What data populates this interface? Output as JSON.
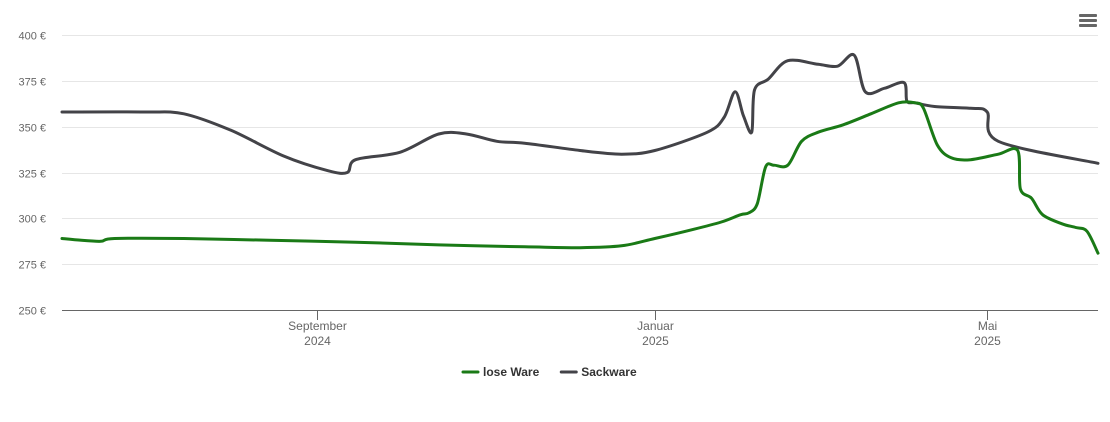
{
  "menu_icon": "hamburger-menu-icon",
  "chart_data": {
    "type": "line",
    "title": "",
    "xlabel": "",
    "ylabel": "",
    "ylim": [
      250,
      400
    ],
    "yticks": [
      250,
      275,
      300,
      325,
      350,
      375,
      400
    ],
    "ytick_labels": [
      "250 €",
      "275 €",
      "300 €",
      "325 €",
      "350 €",
      "375 €",
      "400 €"
    ],
    "xlim": [
      "2024-06-01",
      "2025-06-10"
    ],
    "xticks": [
      {
        "date": "2024-09-01",
        "line1": "September",
        "line2": "2024"
      },
      {
        "date": "2025-01-01",
        "line1": "Januar",
        "line2": "2025"
      },
      {
        "date": "2025-05-01",
        "line1": "Mai",
        "line2": "2025"
      }
    ],
    "grid": true,
    "legend_position": "bottom",
    "series": [
      {
        "name": "lose Ware",
        "color": "#1a7a16",
        "points": [
          [
            "2024-06-01",
            289
          ],
          [
            "2024-06-08",
            288
          ],
          [
            "2024-06-15",
            287.5
          ],
          [
            "2024-06-20",
            289
          ],
          [
            "2024-07-15",
            289
          ],
          [
            "2024-08-15",
            288
          ],
          [
            "2024-09-15",
            287
          ],
          [
            "2024-10-15",
            285.5
          ],
          [
            "2024-11-15",
            284.5
          ],
          [
            "2024-12-05",
            284
          ],
          [
            "2024-12-20",
            285
          ],
          [
            "2025-01-01",
            289
          ],
          [
            "2025-01-15",
            294
          ],
          [
            "2025-01-25",
            298
          ],
          [
            "2025-02-01",
            302
          ],
          [
            "2025-02-04",
            303
          ],
          [
            "2025-02-07",
            308
          ],
          [
            "2025-02-10",
            328
          ],
          [
            "2025-02-13",
            329
          ],
          [
            "2025-02-18",
            329
          ],
          [
            "2025-02-23",
            342
          ],
          [
            "2025-03-01",
            347
          ],
          [
            "2025-03-10",
            351
          ],
          [
            "2025-03-20",
            357
          ],
          [
            "2025-03-30",
            363
          ],
          [
            "2025-04-05",
            363
          ],
          [
            "2025-04-08",
            360
          ],
          [
            "2025-04-13",
            340
          ],
          [
            "2025-04-18",
            333
          ],
          [
            "2025-04-25",
            332
          ],
          [
            "2025-05-05",
            335
          ],
          [
            "2025-05-12",
            337
          ],
          [
            "2025-05-13",
            316
          ],
          [
            "2025-05-17",
            311
          ],
          [
            "2025-05-21",
            302
          ],
          [
            "2025-05-28",
            297
          ],
          [
            "2025-06-02",
            295
          ],
          [
            "2025-06-06",
            293
          ],
          [
            "2025-06-10",
            281
          ]
        ]
      },
      {
        "name": "Sackware",
        "color": "#434348",
        "points": [
          [
            "2024-06-01",
            358
          ],
          [
            "2024-07-01",
            358
          ],
          [
            "2024-07-15",
            357
          ],
          [
            "2024-08-01",
            348
          ],
          [
            "2024-08-20",
            334
          ],
          [
            "2024-09-05",
            326
          ],
          [
            "2024-09-12",
            325
          ],
          [
            "2024-09-15",
            332
          ],
          [
            "2024-10-01",
            336
          ],
          [
            "2024-10-15",
            346
          ],
          [
            "2024-10-25",
            346
          ],
          [
            "2024-11-05",
            342
          ],
          [
            "2024-11-15",
            341
          ],
          [
            "2024-12-05",
            337
          ],
          [
            "2024-12-20",
            335
          ],
          [
            "2025-01-01",
            337
          ],
          [
            "2025-01-20",
            347
          ],
          [
            "2025-01-26",
            355
          ],
          [
            "2025-01-30",
            369
          ],
          [
            "2025-02-02",
            356
          ],
          [
            "2025-02-05",
            347
          ],
          [
            "2025-02-06",
            370
          ],
          [
            "2025-02-11",
            376
          ],
          [
            "2025-02-18",
            386
          ],
          [
            "2025-03-01",
            384
          ],
          [
            "2025-03-08",
            383
          ],
          [
            "2025-03-14",
            389
          ],
          [
            "2025-03-18",
            369
          ],
          [
            "2025-03-25",
            371
          ],
          [
            "2025-04-01",
            374
          ],
          [
            "2025-04-02",
            364
          ],
          [
            "2025-04-05",
            363
          ],
          [
            "2025-04-12",
            361
          ],
          [
            "2025-04-25",
            360
          ],
          [
            "2025-05-01",
            358
          ],
          [
            "2025-05-05",
            342
          ],
          [
            "2025-06-10",
            330
          ]
        ]
      }
    ]
  }
}
